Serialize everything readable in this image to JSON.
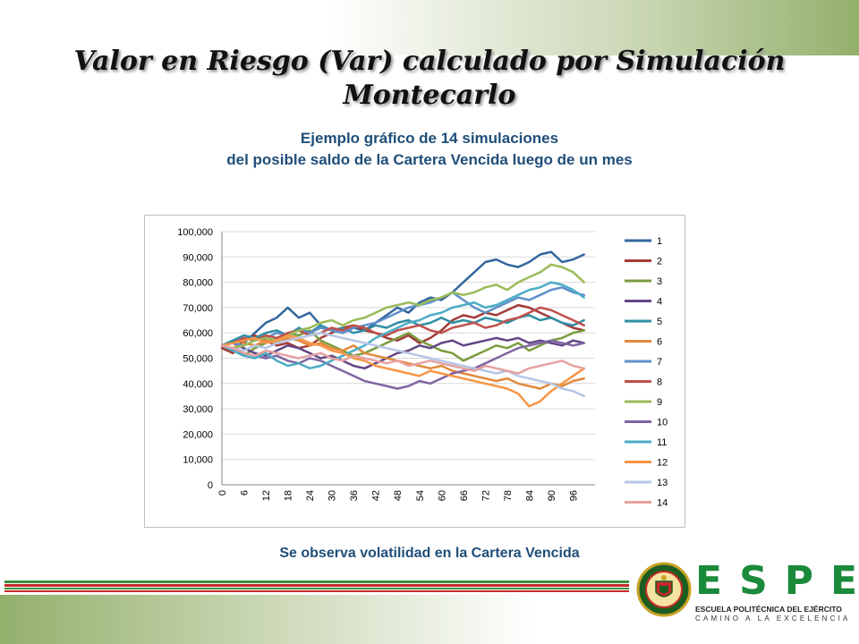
{
  "slide": {
    "title_line1": "Valor en Riesgo (Var) calculado por Simulación",
    "title_line2": "Montecarlo",
    "subtitle_line1": "Ejemplo gráfico de 14 simulaciones",
    "subtitle_line2": "del posible saldo de la Cartera Vencida luego de un mes",
    "caption": "Se observa  volatilidad en la Cartera Vencida"
  },
  "logo": {
    "letters": [
      "E",
      "S",
      "P",
      "E"
    ],
    "institution": "ESCUELA POLITÉCNICA DEL EJÉRCITO",
    "motto": "CAMINO A LA EXCELENCIA",
    "seal_text": "ESCUELA POLITÉCNICA DEL EJÉRCITO · ECUADOR"
  },
  "colors": {
    "title_blue": "#1f4e79",
    "stripe_green": "#3b8f3b",
    "stripe_red": "#c62828",
    "brand_green": "#1b8a3b"
  },
  "chart_data": {
    "type": "line",
    "x": [
      0,
      3,
      6,
      9,
      12,
      15,
      18,
      21,
      24,
      27,
      30,
      33,
      36,
      39,
      42,
      45,
      48,
      51,
      54,
      57,
      60,
      63,
      66,
      69,
      72,
      75,
      78,
      81,
      84,
      87,
      90,
      93,
      96,
      99
    ],
    "x_ticks": [
      "0",
      "6",
      "12",
      "18",
      "24",
      "30",
      "36",
      "42",
      "48",
      "54",
      "60",
      "66",
      "72",
      "78",
      "84",
      "90",
      "96"
    ],
    "y_ticks": [
      "0",
      "10,000",
      "20,000",
      "30,000",
      "40,000",
      "50,000",
      "60,000",
      "70,000",
      "80,000",
      "90,000",
      "100,000"
    ],
    "ylim": [
      0,
      100000
    ],
    "xlim": [
      0,
      102
    ],
    "grid": "horizontal",
    "legend_position": "right",
    "series": [
      {
        "name": "1",
        "color": "#33669e",
        "values": [
          55000,
          57000,
          56000,
          60000,
          64000,
          66000,
          70000,
          66000,
          68000,
          63000,
          61000,
          60000,
          62000,
          61000,
          64000,
          67000,
          70000,
          68000,
          72000,
          74000,
          73000,
          76000,
          80000,
          84000,
          88000,
          89000,
          87000,
          86000,
          88000,
          91000,
          92000,
          88000,
          89000,
          91000
        ]
      },
      {
        "name": "2",
        "color": "#a33b39",
        "values": [
          54000,
          52000,
          57000,
          59000,
          57000,
          55000,
          56000,
          54000,
          55000,
          58000,
          60000,
          62000,
          63000,
          61000,
          60000,
          58000,
          57000,
          59000,
          56000,
          58000,
          61000,
          65000,
          67000,
          66000,
          68000,
          67000,
          69000,
          71000,
          70000,
          68000,
          66000,
          64000,
          62000,
          61000
        ]
      },
      {
        "name": "3",
        "color": "#7b9c3e",
        "values": [
          55000,
          53000,
          51000,
          54000,
          56000,
          58000,
          60000,
          59000,
          61000,
          57000,
          55000,
          53000,
          51000,
          52000,
          54000,
          56000,
          58000,
          60000,
          57000,
          55000,
          53000,
          52000,
          49000,
          51000,
          53000,
          55000,
          54000,
          56000,
          53000,
          55000,
          57000,
          58000,
          60000,
          61000
        ]
      },
      {
        "name": "4",
        "color": "#634684",
        "values": [
          55000,
          56000,
          54000,
          52000,
          51000,
          53000,
          55000,
          54000,
          52000,
          50000,
          51000,
          49000,
          47000,
          46000,
          48000,
          50000,
          52000,
          53000,
          55000,
          54000,
          56000,
          57000,
          55000,
          56000,
          57000,
          58000,
          57000,
          58000,
          56000,
          57000,
          56000,
          55000,
          57000,
          56000
        ]
      },
      {
        "name": "5",
        "color": "#2f8ea4",
        "values": [
          55000,
          57000,
          59000,
          58000,
          60000,
          61000,
          59000,
          62000,
          60000,
          63000,
          61000,
          62000,
          60000,
          61000,
          63000,
          62000,
          64000,
          65000,
          63000,
          64000,
          66000,
          64000,
          65000,
          64000,
          66000,
          65000,
          64000,
          66000,
          67000,
          65000,
          66000,
          64000,
          63000,
          65000
        ]
      },
      {
        "name": "6",
        "color": "#e2893b",
        "values": [
          55000,
          54000,
          56000,
          55000,
          57000,
          56000,
          58000,
          57000,
          55000,
          56000,
          54000,
          53000,
          55000,
          52000,
          51000,
          50000,
          49000,
          48000,
          47000,
          46000,
          47000,
          45000,
          44000,
          43000,
          42000,
          41000,
          42000,
          40000,
          39000,
          38000,
          40000,
          39000,
          41000,
          42000
        ]
      },
      {
        "name": "7",
        "color": "#5f8fca",
        "values": [
          55000,
          56000,
          55000,
          57000,
          58000,
          60000,
          59000,
          61000,
          60000,
          62000,
          61000,
          60000,
          62000,
          63000,
          64000,
          66000,
          68000,
          70000,
          71000,
          72000,
          74000,
          76000,
          73000,
          70000,
          68000,
          70000,
          72000,
          74000,
          73000,
          75000,
          77000,
          78000,
          76000,
          75000
        ]
      },
      {
        "name": "8",
        "color": "#c0504d",
        "values": [
          55000,
          56000,
          58000,
          57000,
          59000,
          58000,
          60000,
          61000,
          59000,
          60000,
          62000,
          61000,
          63000,
          62000,
          60000,
          59000,
          61000,
          62000,
          63000,
          61000,
          60000,
          62000,
          63000,
          64000,
          62000,
          63000,
          65000,
          66000,
          68000,
          70000,
          69000,
          67000,
          65000,
          63000
        ]
      },
      {
        "name": "9",
        "color": "#9bbb59",
        "values": [
          55000,
          54000,
          55000,
          57000,
          58000,
          57000,
          59000,
          61000,
          62000,
          64000,
          65000,
          63000,
          65000,
          66000,
          68000,
          70000,
          71000,
          72000,
          71000,
          73000,
          74000,
          76000,
          75000,
          76000,
          78000,
          79000,
          77000,
          80000,
          82000,
          84000,
          87000,
          86000,
          84000,
          80000
        ]
      },
      {
        "name": "10",
        "color": "#8064a2",
        "values": [
          55000,
          53000,
          52000,
          51000,
          50000,
          51000,
          49000,
          48000,
          50000,
          49000,
          47000,
          45000,
          43000,
          41000,
          40000,
          39000,
          38000,
          39000,
          41000,
          40000,
          42000,
          44000,
          45000,
          46000,
          48000,
          50000,
          52000,
          54000,
          55000,
          56000,
          57000,
          56000,
          55000,
          56000
        ]
      },
      {
        "name": "11",
        "color": "#4bacc6",
        "values": [
          55000,
          53000,
          51000,
          50000,
          52000,
          49000,
          47000,
          48000,
          46000,
          47000,
          49000,
          51000,
          53000,
          55000,
          58000,
          60000,
          62000,
          64000,
          65000,
          67000,
          68000,
          70000,
          71000,
          72000,
          70000,
          71000,
          73000,
          75000,
          77000,
          78000,
          80000,
          79000,
          77000,
          74000
        ]
      },
      {
        "name": "12",
        "color": "#f79646",
        "values": [
          55000,
          56000,
          57000,
          58000,
          56000,
          57000,
          59000,
          58000,
          56000,
          55000,
          53000,
          52000,
          50000,
          49000,
          47000,
          46000,
          45000,
          44000,
          43000,
          45000,
          44000,
          43000,
          42000,
          41000,
          40000,
          39000,
          38000,
          36000,
          31000,
          33000,
          37000,
          40000,
          43000,
          46000
        ]
      },
      {
        "name": "13",
        "color": "#b4c6e7",
        "values": [
          55000,
          54000,
          53000,
          55000,
          54000,
          56000,
          57000,
          58000,
          59000,
          60000,
          59000,
          58000,
          57000,
          56000,
          55000,
          54000,
          53000,
          52000,
          51000,
          50000,
          49000,
          48000,
          47000,
          46000,
          45000,
          44000,
          45000,
          43000,
          42000,
          41000,
          40000,
          38000,
          37000,
          35000
        ]
      },
      {
        "name": "14",
        "color": "#e6a1a0",
        "values": [
          55000,
          54000,
          52000,
          51000,
          53000,
          52000,
          51000,
          50000,
          51000,
          52000,
          50000,
          49000,
          51000,
          50000,
          49000,
          48000,
          49000,
          47000,
          48000,
          49000,
          48000,
          47000,
          46000,
          45000,
          47000,
          46000,
          45000,
          44000,
          46000,
          47000,
          48000,
          49000,
          47000,
          46000
        ]
      }
    ]
  }
}
